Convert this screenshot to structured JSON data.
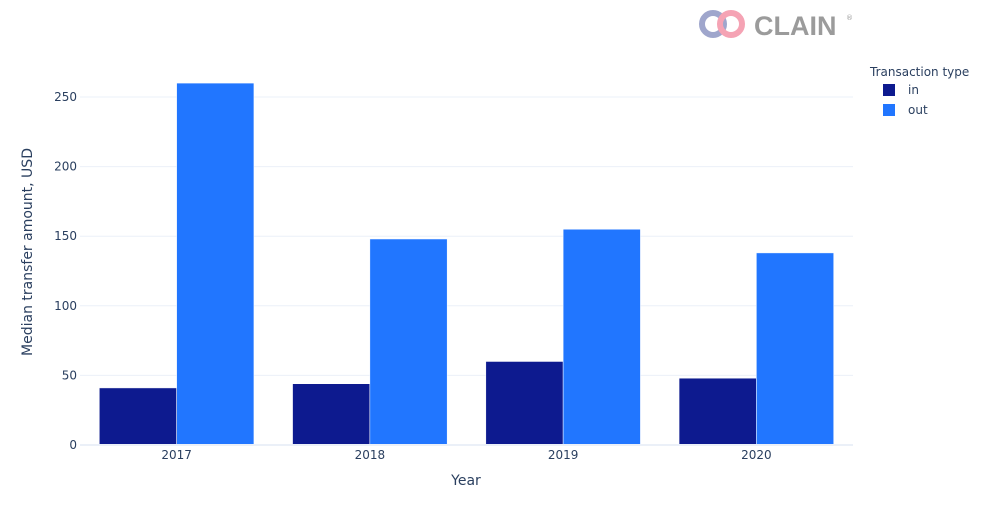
{
  "logo": {
    "text": "CLAIN",
    "mark": "®",
    "colors": {
      "ring_blue": "#9fa6cc",
      "ring_pink": "#f5a3b4",
      "text": "#9b9b9b"
    }
  },
  "chart_data": {
    "type": "bar",
    "title": "",
    "xlabel": "Year",
    "ylabel": "Median transfer amount, USD",
    "categories": [
      "2017",
      "2018",
      "2019",
      "2020"
    ],
    "series": [
      {
        "name": "in",
        "color": "#0d1a8f",
        "values": [
          41,
          44,
          60,
          48
        ]
      },
      {
        "name": "out",
        "color": "#2176ff",
        "values": [
          260,
          148,
          155,
          138
        ]
      }
    ],
    "ylim": [
      0,
      273
    ],
    "yticks": [
      0,
      50,
      100,
      150,
      200,
      250
    ],
    "grid": true,
    "legend": {
      "title": "Transaction type",
      "placement": "top-right"
    }
  }
}
